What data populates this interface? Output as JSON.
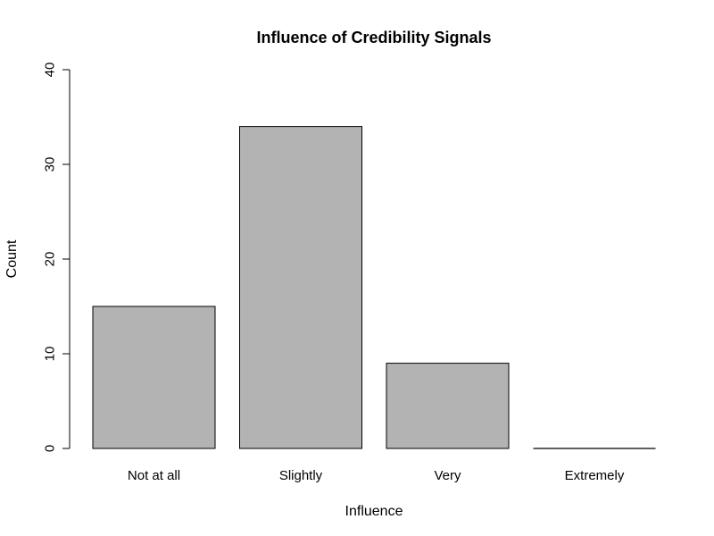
{
  "chart_data": {
    "type": "bar",
    "title": "Influence of Credibility Signals",
    "xlabel": "Influence",
    "ylabel": "Count",
    "categories": [
      "Not at all",
      "Slightly",
      "Very",
      "Extremely"
    ],
    "values": [
      15,
      34,
      9,
      0
    ],
    "ylim": [
      0,
      40
    ],
    "yticks": [
      0,
      10,
      20,
      30,
      40
    ],
    "grid": false,
    "legend": "none",
    "bar_color": "#b3b3b3",
    "edge_color": "#000000"
  }
}
